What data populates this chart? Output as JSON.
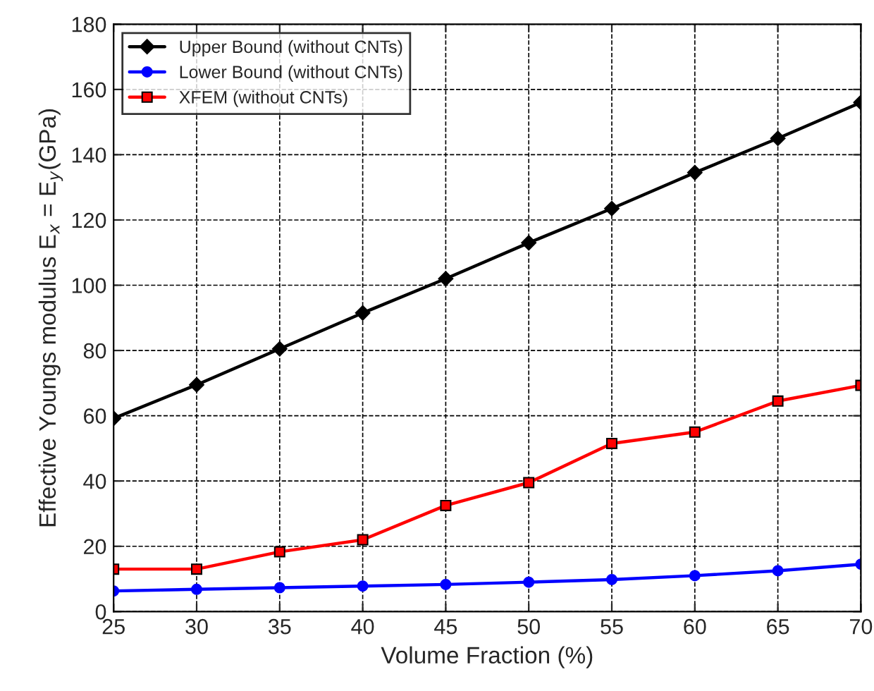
{
  "chart_data": {
    "type": "line",
    "xlabel": "Volume Fraction (%)",
    "ylabel": "Effective Youngs modulus E$_{x}$ = E$_{y}$(GPa)",
    "x": [
      25,
      30,
      35,
      40,
      45,
      50,
      55,
      60,
      65,
      70
    ],
    "series": [
      {
        "name": "Upper Bound (without CNTs)",
        "color": "#000000",
        "marker": "diamond",
        "values": [
          59.2,
          69.5,
          80.5,
          91.5,
          102,
          113,
          123.5,
          134.5,
          145,
          156
        ]
      },
      {
        "name": "Lower Bound (without CNTs)",
        "color": "#0000ff",
        "marker": "circle",
        "values": [
          6.3,
          6.8,
          7.3,
          7.8,
          8.3,
          9,
          9.8,
          11,
          12.5,
          14.5
        ]
      },
      {
        "name": "XFEM (without CNTs)",
        "color": "#ff0000",
        "marker": "square",
        "values": [
          13,
          13,
          18.3,
          22,
          32.5,
          39.5,
          51.5,
          55,
          64.5,
          69.3
        ]
      }
    ],
    "xlim": [
      25,
      70
    ],
    "xticks": [
      25,
      30,
      35,
      40,
      45,
      50,
      55,
      60,
      65,
      70
    ],
    "ylim": [
      0,
      180
    ],
    "yticks": [
      0,
      20,
      40,
      60,
      80,
      100,
      120,
      140,
      160,
      180
    ],
    "grid": true,
    "legend": "top left",
    "line_style": "solid"
  }
}
